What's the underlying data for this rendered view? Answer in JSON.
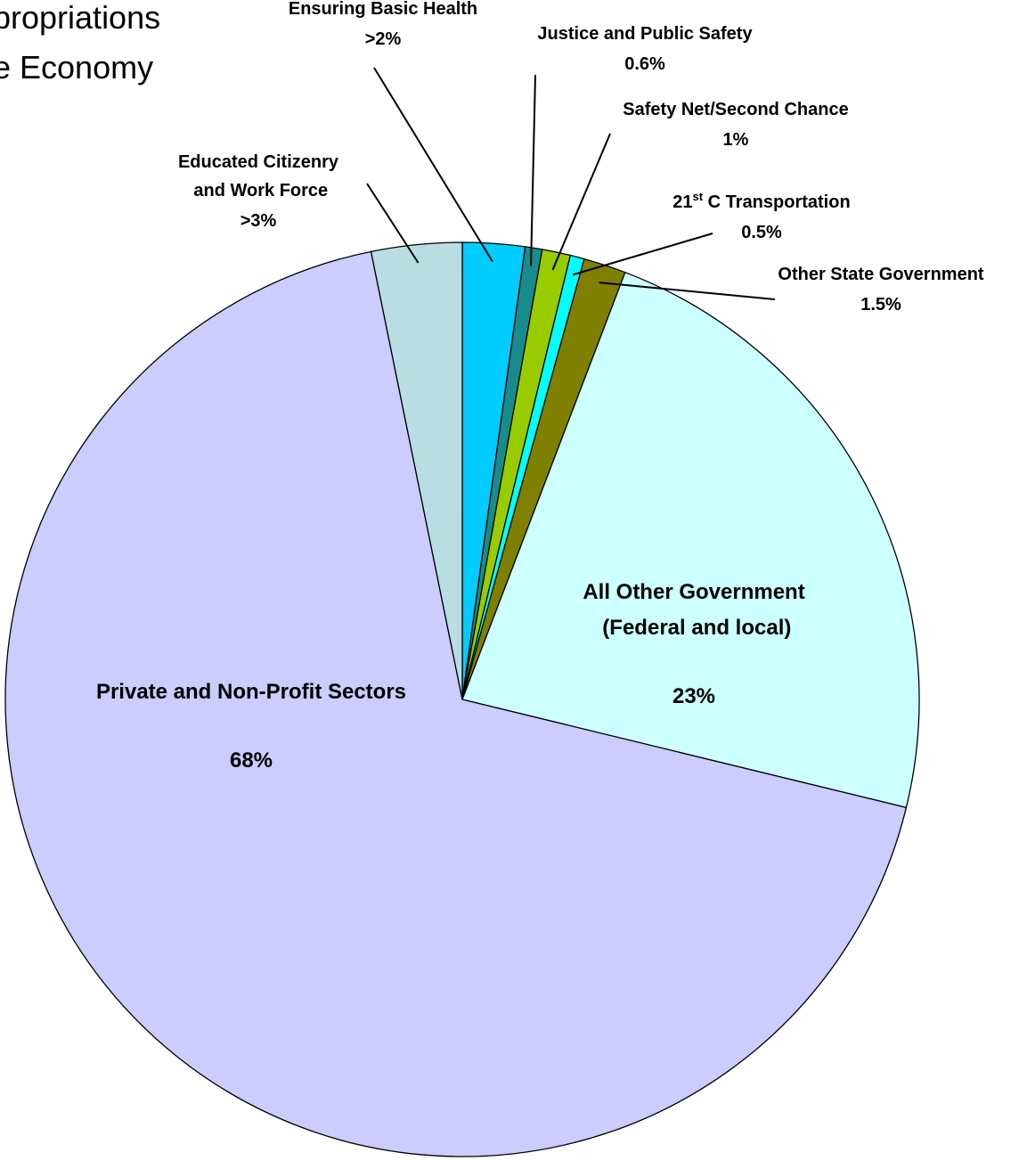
{
  "chart_data": {
    "type": "pie",
    "title": [
      "propriations",
      "e Economy"
    ],
    "categories": [
      "Ensuring Basic Health",
      "Justice and Public Safety",
      "Safety Net/Second Chance",
      "21st C Transportation",
      "Other State Government",
      "All Other Government (Federal and local)",
      "Private and Non-Profit Sectors",
      "Educated Citizenry and Work Force"
    ],
    "values": [
      2.2,
      0.6,
      1,
      0.5,
      1.5,
      23,
      68,
      3.2
    ],
    "value_labels": [
      ">2%",
      "0.6%",
      "1%",
      "0.5%",
      "1.5%",
      "23%",
      "68%",
      ">3%"
    ],
    "colors": [
      "#00ccff",
      "#188c8c",
      "#99cc00",
      "#00ffff",
      "#808000",
      "#ccffff",
      "#ccccff",
      "#b8dde3"
    ]
  }
}
